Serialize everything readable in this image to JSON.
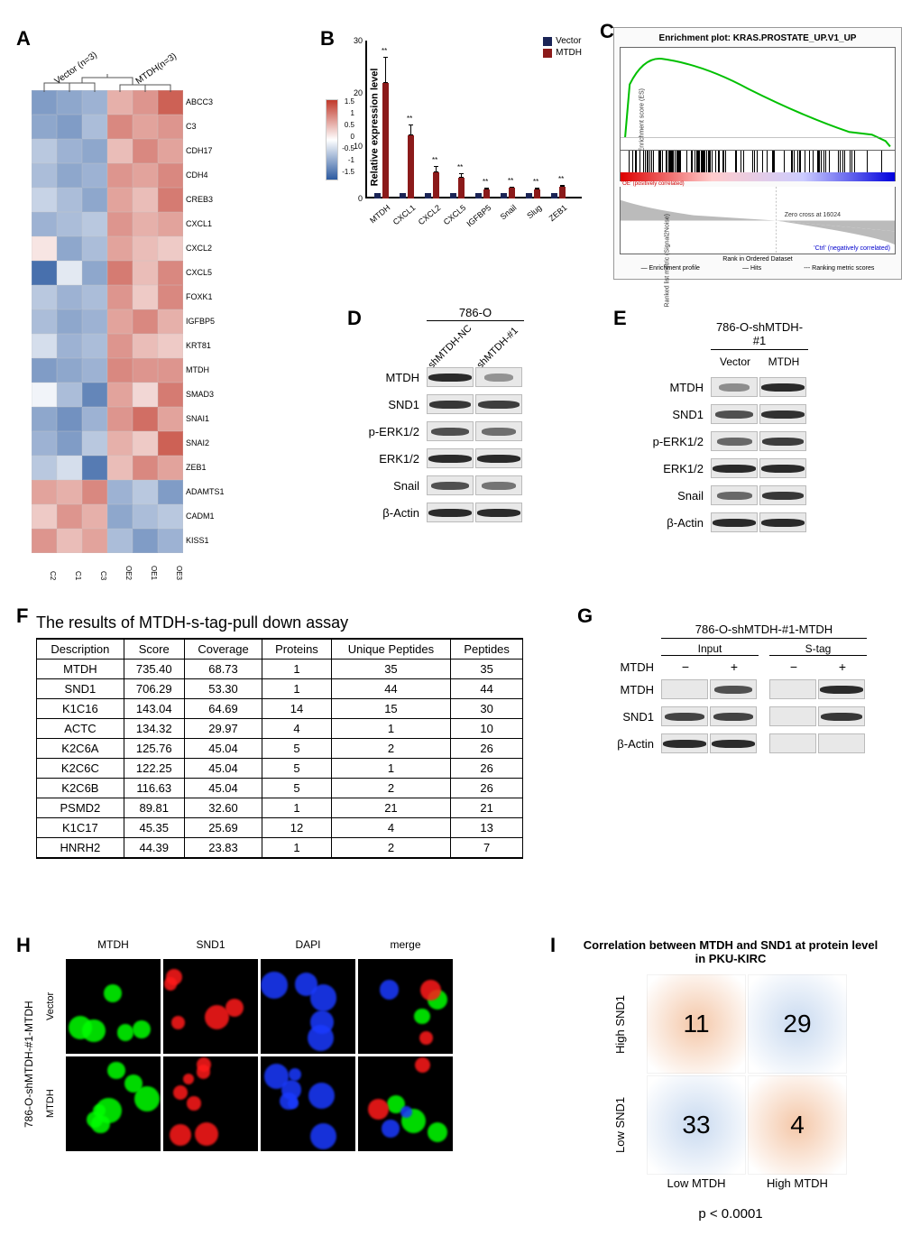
{
  "panelA": {
    "label": "A",
    "header_left": "Vector (n=3)",
    "header_right": "MTDH(n=3)",
    "genes": [
      "ABCC3",
      "C3",
      "CDH17",
      "CDH4",
      "CREB3",
      "CXCL1",
      "CXCL2",
      "CXCL5",
      "FOXK1",
      "IGFBP5",
      "KRT81",
      "MTDH",
      "SMAD3",
      "SNAI1",
      "SNAI2",
      "ZEB1",
      "ADAMTS1",
      "CADM1",
      "KISS1"
    ],
    "columns": [
      "C2",
      "C1",
      "C3",
      "OE2",
      "OE1",
      "OE3"
    ],
    "colors": {
      "low": "#2c5aa0",
      "mid": "#ffffff",
      "high": "#c0392b"
    },
    "scale_ticks": [
      "1.5",
      "1",
      "0.5",
      "0",
      "-0.5",
      "-1",
      "-1.5"
    ],
    "matrix": [
      [
        -0.9,
        -0.8,
        -0.7,
        0.6,
        0.8,
        1.2
      ],
      [
        -0.8,
        -0.9,
        -0.6,
        0.9,
        0.7,
        0.8
      ],
      [
        -0.5,
        -0.7,
        -0.8,
        0.5,
        0.9,
        0.7
      ],
      [
        -0.6,
        -0.8,
        -0.7,
        0.8,
        0.7,
        0.9
      ],
      [
        -0.4,
        -0.6,
        -0.8,
        0.7,
        0.5,
        1.0
      ],
      [
        -0.7,
        -0.6,
        -0.5,
        0.8,
        0.6,
        0.7
      ],
      [
        0.2,
        -0.8,
        -0.6,
        0.7,
        0.5,
        0.4
      ],
      [
        -1.3,
        -0.2,
        -0.8,
        1.0,
        0.5,
        0.9
      ],
      [
        -0.5,
        -0.7,
        -0.6,
        0.8,
        0.4,
        0.9
      ],
      [
        -0.6,
        -0.8,
        -0.7,
        0.7,
        0.9,
        0.6
      ],
      [
        -0.3,
        -0.7,
        -0.6,
        0.8,
        0.5,
        0.4
      ],
      [
        -0.9,
        -0.8,
        -0.7,
        0.9,
        0.8,
        0.8
      ],
      [
        -0.1,
        -0.6,
        -1.1,
        0.7,
        0.3,
        1.0
      ],
      [
        -0.8,
        -1.0,
        -0.7,
        0.8,
        1.1,
        0.7
      ],
      [
        -0.7,
        -0.9,
        -0.5,
        0.6,
        0.4,
        1.2
      ],
      [
        -0.5,
        -0.3,
        -1.2,
        0.5,
        0.9,
        0.7
      ],
      [
        0.7,
        0.6,
        0.9,
        -0.7,
        -0.5,
        -0.9
      ],
      [
        0.4,
        0.8,
        0.6,
        -0.8,
        -0.6,
        -0.5
      ],
      [
        0.8,
        0.5,
        0.7,
        -0.6,
        -0.9,
        -0.7
      ]
    ]
  },
  "panelB": {
    "label": "B",
    "ylabel": "Relative expression level",
    "ymax": 30,
    "ytick_step": 10,
    "legend": [
      {
        "name": "Vector",
        "color": "#1a2456"
      },
      {
        "name": "MTDH",
        "color": "#8b1a1a"
      }
    ],
    "categories": [
      "MTDH",
      "CXCL1",
      "CXCL2",
      "CXCL5",
      "IGFBP5",
      "Snail",
      "Slug",
      "ZEB1"
    ],
    "vector_vals": [
      1,
      1,
      1,
      1,
      1,
      1,
      1,
      1
    ],
    "mtdh_vals": [
      22,
      12,
      5,
      4,
      1.8,
      2.0,
      1.7,
      2.2
    ],
    "mtdh_err": [
      5,
      2,
      1.2,
      0.8,
      0.3,
      0.3,
      0.3,
      0.3
    ],
    "sig": "**"
  },
  "panelC": {
    "label": "C",
    "title": "Enrichment plot: KRAS.PROSTATE_UP.V1_UP",
    "es_ylabel": "Enrichment score (ES)",
    "es_yticks": [
      "0.5",
      "0.4",
      "0.3",
      "0.2",
      "0.1",
      "0.0",
      "-0.1"
    ],
    "rank_ylabel": "Ranked list metric (Signal2Noise)",
    "rank_yticks": [
      "2",
      "1",
      "0",
      "-1"
    ],
    "xlabel": "Rank in Ordered Dataset",
    "xticks": [
      "0",
      "5,000",
      "10,000",
      "15,000",
      "20,000",
      "25,000"
    ],
    "zero_cross": "Zero cross at 16024",
    "pos_label": "'OE' (positively correlated)",
    "neg_label": "'Ctrl' (negatively correlated)",
    "footer": [
      "Enrichment profile",
      "Hits",
      "Ranking metric scores"
    ],
    "curve_color": "#00c000"
  },
  "panelD": {
    "label": "D",
    "top_label": "786-O",
    "columns": [
      "shMTDH-NC",
      "shMTDH-#1"
    ],
    "rows": [
      "MTDH",
      "SND1",
      "p-ERK1/2",
      "ERK1/2",
      "Snail",
      "β-Actin"
    ],
    "intensity": [
      [
        1.0,
        0.15
      ],
      [
        0.9,
        0.85
      ],
      [
        0.7,
        0.45
      ],
      [
        1.0,
        1.0
      ],
      [
        0.7,
        0.4
      ],
      [
        1.0,
        1.0
      ]
    ]
  },
  "panelE": {
    "label": "E",
    "top_label": "786-O-shMTDH-#1",
    "columns": [
      "Vector",
      "MTDH"
    ],
    "rows": [
      "MTDH",
      "SND1",
      "p-ERK1/2",
      "ERK1/2",
      "Snail",
      "β-Actin"
    ],
    "intensity": [
      [
        0.2,
        1.0
      ],
      [
        0.7,
        0.95
      ],
      [
        0.5,
        0.85
      ],
      [
        1.0,
        1.0
      ],
      [
        0.5,
        0.9
      ],
      [
        1.0,
        1.0
      ]
    ]
  },
  "panelF": {
    "label": "F",
    "title": "The results of MTDH-s-tag-pull down assay",
    "columns": [
      "Description",
      "Score",
      "Coverage",
      "Proteins",
      "Unique Peptides",
      "Peptides"
    ],
    "rows": [
      [
        "MTDH",
        "735.40",
        "68.73",
        "1",
        "35",
        "35"
      ],
      [
        "SND1",
        "706.29",
        "53.30",
        "1",
        "44",
        "44"
      ],
      [
        "K1C16",
        "143.04",
        "64.69",
        "14",
        "15",
        "30"
      ],
      [
        "ACTC",
        "134.32",
        "29.97",
        "4",
        "1",
        "10"
      ],
      [
        "K2C6A",
        "125.76",
        "45.04",
        "5",
        "2",
        "26"
      ],
      [
        "K2C6C",
        "122.25",
        "45.04",
        "5",
        "1",
        "26"
      ],
      [
        "K2C6B",
        "116.63",
        "45.04",
        "5",
        "2",
        "26"
      ],
      [
        "PSMD2",
        "89.81",
        "32.60",
        "1",
        "21",
        "21"
      ],
      [
        "K1C17",
        "45.35",
        "25.69",
        "12",
        "4",
        "13"
      ],
      [
        "HNRH2",
        "44.39",
        "23.83",
        "1",
        "2",
        "7"
      ]
    ]
  },
  "panelG": {
    "label": "G",
    "top_label": "786-O-shMTDH-#1-MTDH",
    "groups": [
      "Input",
      "S-tag"
    ],
    "sub": [
      "−",
      "+",
      "−",
      "+"
    ],
    "row_head": "MTDH",
    "rows": [
      "MTDH",
      "SND1",
      "β-Actin"
    ],
    "intensity": [
      [
        0,
        0.7,
        0,
        1.0
      ],
      [
        0.8,
        0.8,
        0,
        0.9
      ],
      [
        1.0,
        1.0,
        0,
        0
      ]
    ]
  },
  "panelH": {
    "label": "H",
    "side_label": "786-O-shMTDH-#1-MTDH",
    "col_labels": [
      "MTDH",
      "SND1",
      "DAPI",
      "merge"
    ],
    "row_labels": [
      "Vector",
      "MTDH"
    ],
    "channel_colors": [
      "#00ff00",
      "#ff1a1a",
      "#1a3aff",
      "#ffcc00"
    ]
  },
  "panelI": {
    "label": "I",
    "title": "Correlation between MTDH and SND1 at protein level in PKU-KIRC",
    "y_labels": [
      "High SND1",
      "Low SND1"
    ],
    "x_labels": [
      "Low MTDH",
      "High MTDH"
    ],
    "cells": [
      [
        11,
        29
      ],
      [
        33,
        4
      ]
    ],
    "colors": [
      [
        "#f4c7a8",
        "#c9daf0"
      ],
      [
        "#c9daf0",
        "#f4c7a8"
      ]
    ],
    "pval": "p < 0.0001"
  }
}
